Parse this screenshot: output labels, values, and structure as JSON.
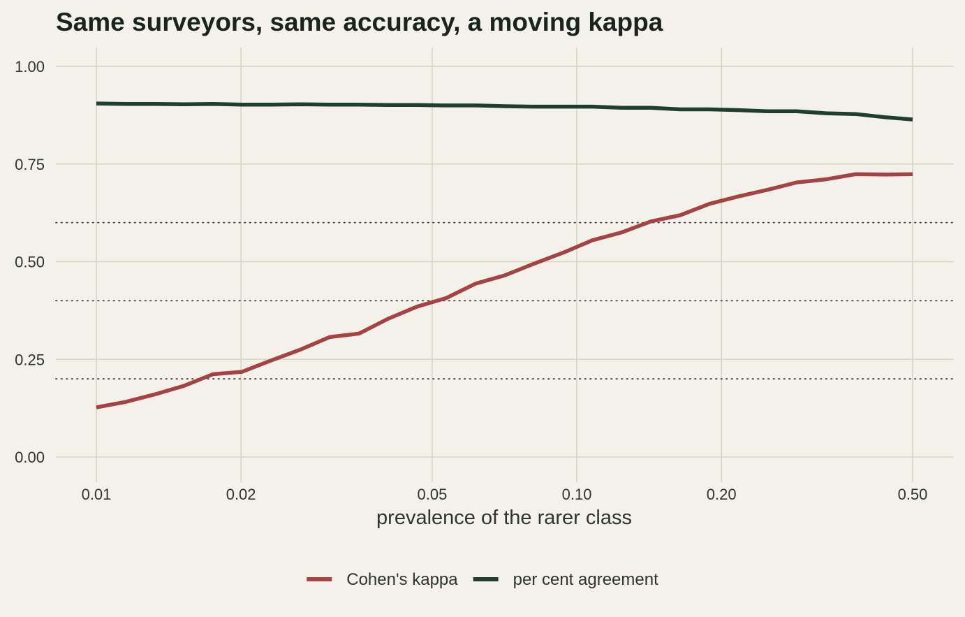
{
  "chart_data": {
    "type": "line",
    "title": "Same surveyors, same accuracy, a moving kappa",
    "xlabel": "prevalence of the rarer class",
    "ylabel": "",
    "x_scale": "log",
    "xlim": [
      0.01,
      0.5
    ],
    "ylim": [
      0,
      1
    ],
    "x_ticks": [
      0.01,
      0.02,
      0.05,
      0.1,
      0.2,
      0.5
    ],
    "x_tick_labels": [
      "0.01",
      "0.02",
      "0.05",
      "0.10",
      "0.20",
      "0.50"
    ],
    "y_ticks": [
      0,
      0.25,
      0.5,
      0.75,
      1.0
    ],
    "y_tick_labels": [
      "0.00",
      "0.25",
      "0.50",
      "0.75",
      "1.00"
    ],
    "reference_lines": [
      0.2,
      0.4,
      0.6
    ],
    "grid": true,
    "legend_position": "bottom",
    "x": [
      0.01,
      0.0115,
      0.0132,
      0.0152,
      0.0175,
      0.0201,
      0.0231,
      0.0266,
      0.0306,
      0.0352,
      0.0405,
      0.0465,
      0.0535,
      0.0616,
      0.0708,
      0.0815,
      0.0937,
      0.1078,
      0.124,
      0.1426,
      0.1641,
      0.1887,
      0.2171,
      0.2497,
      0.2873,
      0.3304,
      0.3801,
      0.4372,
      0.5
    ],
    "series": [
      {
        "name": "Cohen's kappa",
        "color": "#a34345",
        "values": [
          0.127,
          0.141,
          0.16,
          0.182,
          0.212,
          0.218,
          0.247,
          0.275,
          0.307,
          0.316,
          0.354,
          0.385,
          0.407,
          0.444,
          0.465,
          0.495,
          0.523,
          0.555,
          0.575,
          0.603,
          0.619,
          0.648,
          0.667,
          0.684,
          0.703,
          0.711,
          0.724,
          0.723,
          0.724
        ]
      },
      {
        "name": "per cent agreement",
        "color": "#203d2e",
        "values": [
          0.905,
          0.904,
          0.904,
          0.903,
          0.904,
          0.902,
          0.902,
          0.903,
          0.902,
          0.902,
          0.901,
          0.901,
          0.9,
          0.9,
          0.898,
          0.897,
          0.897,
          0.897,
          0.894,
          0.894,
          0.89,
          0.89,
          0.888,
          0.885,
          0.885,
          0.88,
          0.878,
          0.87,
          0.864
        ]
      }
    ]
  },
  "colors": {
    "background": "#f3f1ea",
    "grid": "#d6d5c4",
    "reference_line": "#3a3a3a"
  }
}
